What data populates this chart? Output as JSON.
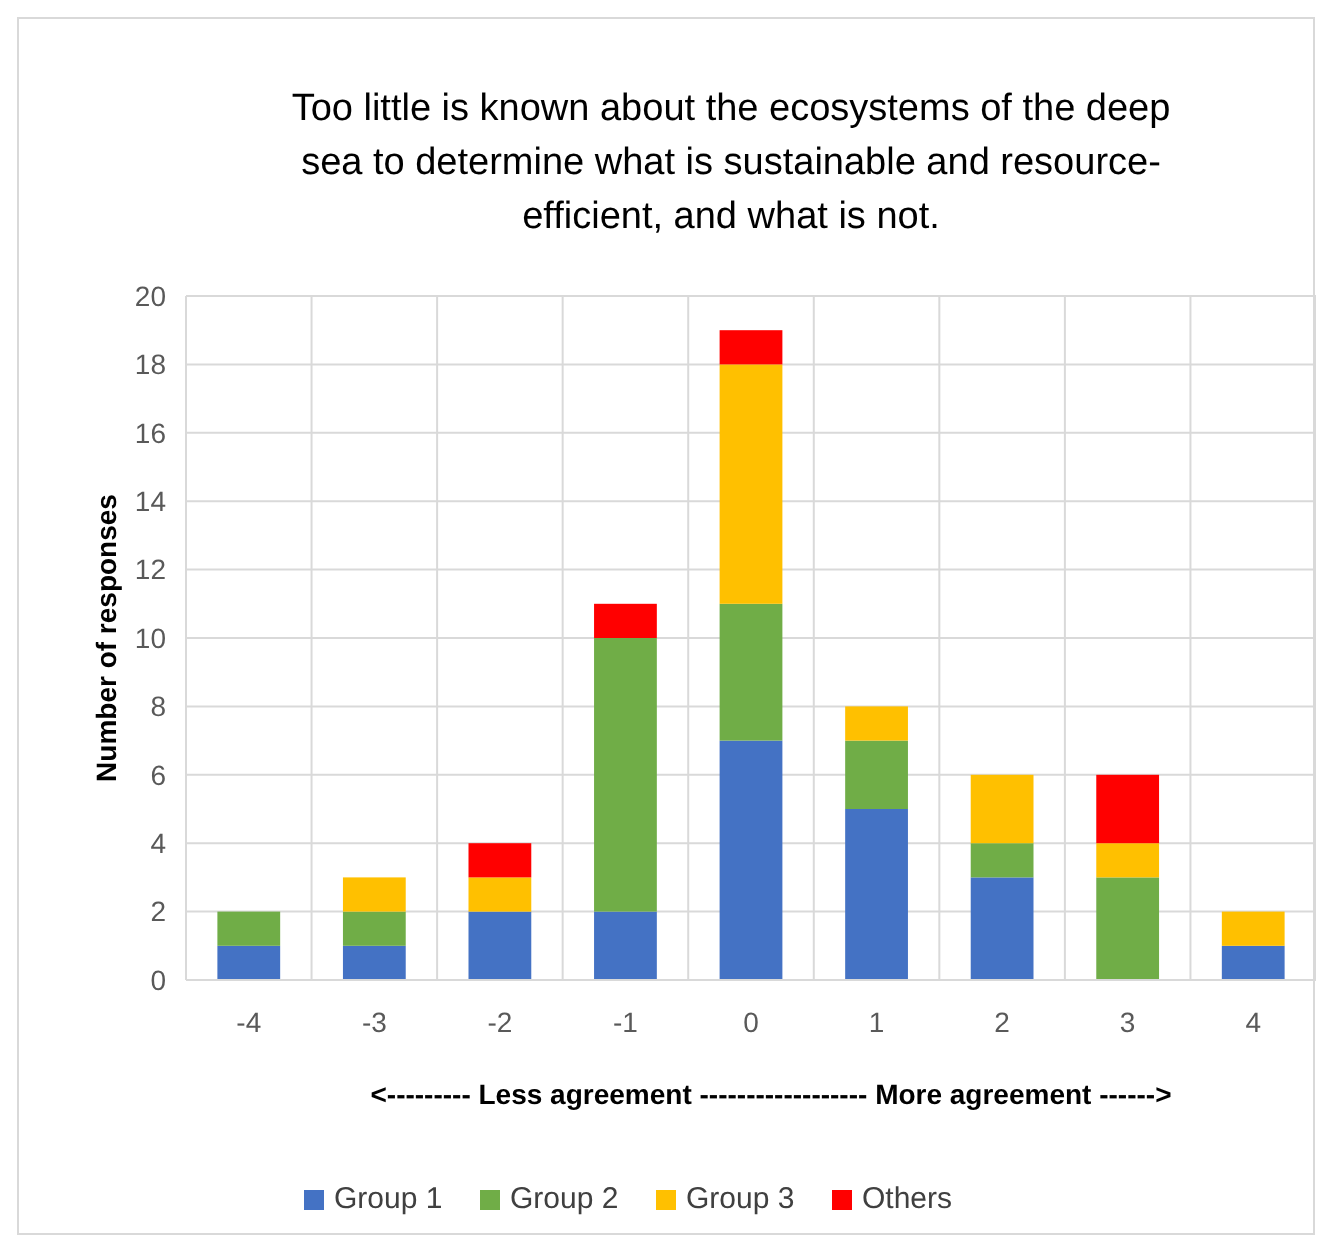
{
  "chart_data": {
    "type": "bar",
    "stacked": true,
    "title": "Too little is known about the ecosystems of the deep sea to determine what is sustainable and resource-efficient, and what is not.",
    "ylabel": "Number of responses",
    "xlabel": "<--------- Less agreement ------------------ More agreement ------>",
    "categories": [
      "-4",
      "-3",
      "-2",
      "-1",
      "0",
      "1",
      "2",
      "3",
      "4"
    ],
    "series": [
      {
        "name": "Group 1",
        "color": "#4472c4",
        "values": [
          1,
          1,
          2,
          2,
          7,
          5,
          3,
          0,
          1
        ]
      },
      {
        "name": "Group 2",
        "color": "#70ad47",
        "values": [
          1,
          1,
          0,
          8,
          4,
          2,
          1,
          3,
          0
        ]
      },
      {
        "name": "Group 3",
        "color": "#ffc000",
        "values": [
          0,
          1,
          1,
          0,
          7,
          1,
          2,
          1,
          1
        ]
      },
      {
        "name": "Others",
        "color": "#ff0000",
        "values": [
          0,
          0,
          1,
          1,
          1,
          0,
          0,
          2,
          0
        ]
      }
    ],
    "ylim": [
      0,
      20
    ],
    "yticks": [
      0,
      2,
      4,
      6,
      8,
      10,
      12,
      14,
      16,
      18,
      20
    ],
    "grid": true,
    "legend": "bottom"
  }
}
